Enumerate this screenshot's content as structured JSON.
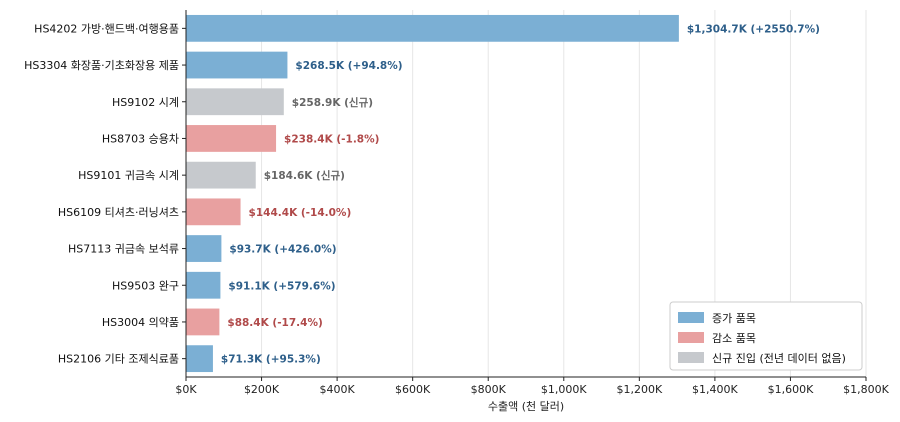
{
  "chart_data": {
    "type": "bar",
    "orientation": "horizontal",
    "categories": [
      "HS4202 가방·핸드백·여행용품",
      "HS3304 화장품·기초화장용 제품",
      "HS9102 시계",
      "HS8703 승용차",
      "HS9101 귀금속 시계",
      "HS6109 티셔츠·러닝셔츠",
      "HS7113 귀금속 보석류",
      "HS9503 완구",
      "HS3004 의약품",
      "HS2106 기타 조제식료품"
    ],
    "values": [
      1304.7,
      268.5,
      258.9,
      238.4,
      184.6,
      144.4,
      93.7,
      91.1,
      88.4,
      71.3
    ],
    "groups": [
      "increase",
      "increase",
      "new",
      "decrease",
      "new",
      "decrease",
      "increase",
      "increase",
      "decrease",
      "increase"
    ],
    "value_labels": [
      "$1,304.7K (+2550.7%)",
      "$268.5K (+94.8%)",
      "$258.9K (신규)",
      "$238.4K (-1.8%)",
      "$184.6K (신규)",
      "$144.4K (-14.0%)",
      "$93.7K (+426.0%)",
      "$91.1K (+579.6%)",
      "$88.4K (-17.4%)",
      "$71.3K (+95.3%)"
    ],
    "xlabel": "수출액 (천 달러)",
    "xlim": [
      0,
      1800
    ],
    "xticks": [
      0,
      200,
      400,
      600,
      800,
      1000,
      1200,
      1400,
      1600,
      1800
    ],
    "xtick_labels": [
      "$0K",
      "$200K",
      "$400K",
      "$600K",
      "$800K",
      "$1,000K",
      "$1,200K",
      "$1,400K",
      "$1,600K",
      "$1,800K"
    ],
    "grid": "vertical",
    "legend_position": "bottom-right",
    "legend": [
      {
        "key": "increase",
        "label": "증가 품목"
      },
      {
        "key": "decrease",
        "label": "감소 품목"
      },
      {
        "key": "new",
        "label": "신규 진입 (전년 데이터 없음)"
      }
    ],
    "colors": {
      "increase": "#7bafd4",
      "decrease": "#e8a0a0",
      "new": "#c6c9cd",
      "increase_text": "#2e5f8a",
      "decrease_text": "#b04a4a",
      "new_text": "#666666",
      "grid": "#e6e6e6",
      "axis": "#222222"
    }
  }
}
